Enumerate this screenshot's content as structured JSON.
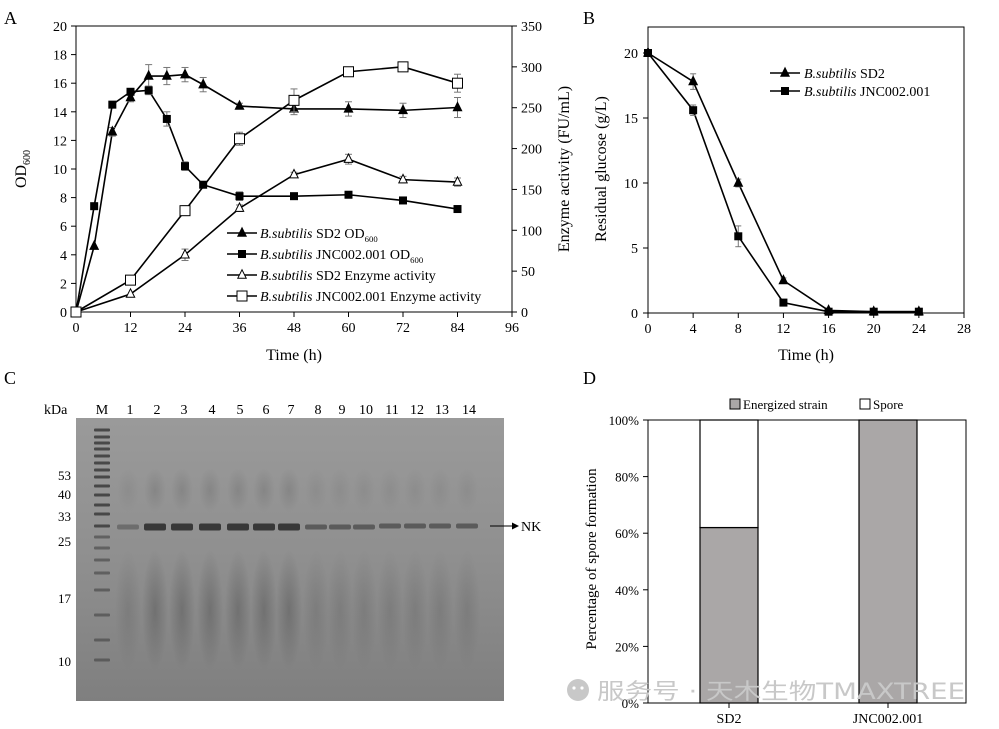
{
  "panels": {
    "A": {
      "label": "A"
    },
    "B": {
      "label": "B"
    },
    "C": {
      "label": "C"
    },
    "D": {
      "label": "D"
    }
  },
  "chart_data": [
    {
      "id": "A",
      "type": "line",
      "title": "",
      "xlabel": "Time (h)",
      "ylabel": "OD",
      "ylabel_sub": "600",
      "y2label": "Enzyme activity (FU/mL)",
      "xlim": [
        0,
        96
      ],
      "ylim": [
        0,
        20
      ],
      "y2lim": [
        0,
        350
      ],
      "xticks": [
        "0",
        "12",
        "24",
        "36",
        "48",
        "60",
        "72",
        "84",
        "96"
      ],
      "yticks": [
        "0",
        "2",
        "4",
        "6",
        "8",
        "10",
        "12",
        "14",
        "16",
        "18",
        "20"
      ],
      "y2ticks": [
        "0",
        "50",
        "100",
        "150",
        "200",
        "250",
        "300",
        "350"
      ],
      "series": [
        {
          "name": "B.subtilis SD2 OD600",
          "legend_italic": "B.subtilis",
          "legend_rest": " SD2 OD",
          "legend_sub": "600",
          "axis": "left",
          "marker": "triangle-filled",
          "x": [
            0,
            4,
            8,
            12,
            16,
            20,
            24,
            28,
            36,
            48,
            60,
            72,
            84
          ],
          "y": [
            0,
            4.6,
            12.6,
            15,
            16.5,
            16.5,
            16.6,
            15.9,
            14.4,
            14.2,
            14.2,
            14.1,
            14.3
          ],
          "err": [
            0,
            0,
            0.3,
            0.3,
            0.8,
            0.6,
            0.5,
            0.5,
            0.2,
            0.4,
            0.5,
            0.5,
            0.7
          ]
        },
        {
          "name": "B.subtilis JNC002.001 OD600",
          "legend_italic": "B.subtilis",
          "legend_rest": " JNC002.001 OD",
          "legend_sub": "600",
          "axis": "left",
          "marker": "square-filled",
          "x": [
            0,
            4,
            8,
            12,
            16,
            20,
            24,
            28,
            36,
            48,
            60,
            72,
            84
          ],
          "y": [
            0,
            7.4,
            14.5,
            15.4,
            15.5,
            13.5,
            10.2,
            8.9,
            8.1,
            8.1,
            8.2,
            7.8,
            7.2
          ],
          "err": [
            0,
            0,
            0,
            0,
            0.3,
            0.5,
            0.3,
            0.2,
            0.3,
            0.2,
            0.2,
            0.2,
            0.2
          ]
        },
        {
          "name": "B.subtilis SD2 Enzyme activity",
          "legend_italic": "B.subtilis",
          "legend_rest": " SD2 Enzyme activity",
          "legend_sub": "",
          "axis": "right",
          "marker": "triangle-open",
          "x": [
            0,
            12,
            24,
            36,
            48,
            60,
            72,
            84
          ],
          "y": [
            0,
            22,
            70,
            127,
            168,
            187,
            162,
            159
          ],
          "err": [
            0,
            0,
            7,
            4,
            3,
            6,
            4,
            5
          ]
        },
        {
          "name": "B.subtilis JNC002.001 Enzyme activity",
          "legend_italic": "B.subtilis",
          "legend_rest": " JNC002.001 Enzyme activity",
          "legend_sub": "",
          "axis": "right",
          "marker": "square-open",
          "x": [
            0,
            12,
            24,
            36,
            48,
            60,
            72,
            84
          ],
          "y": [
            0,
            39,
            124,
            212,
            259,
            294,
            300,
            280
          ],
          "err": [
            0,
            0,
            6,
            8,
            14,
            0,
            0,
            11
          ]
        }
      ]
    },
    {
      "id": "B",
      "type": "line",
      "xlabel": "Time (h)",
      "ylabel": "Residual glucose (g/L)",
      "xlim": [
        0,
        28
      ],
      "ylim": [
        0,
        22
      ],
      "xticks": [
        "0",
        "4",
        "8",
        "12",
        "16",
        "20",
        "24",
        "28"
      ],
      "yticks": [
        "0",
        "5",
        "10",
        "15",
        "20"
      ],
      "series": [
        {
          "name": "B.subtilis SD2",
          "legend_italic": "B.subtilis",
          "legend_rest": " SD2",
          "marker": "triangle-filled",
          "x": [
            0,
            4,
            8,
            12,
            16,
            20,
            24
          ],
          "y": [
            20,
            17.8,
            10,
            2.5,
            0.2,
            0.1,
            0.1
          ],
          "err": [
            0,
            0.6,
            0.3,
            0.2,
            0.1,
            0.1,
            0.1
          ]
        },
        {
          "name": "B.subtilis JNC002.001",
          "legend_italic": "B.subtilis",
          "legend_rest": " JNC002.001",
          "marker": "square-filled",
          "x": [
            0,
            4,
            8,
            12,
            16,
            20,
            24
          ],
          "y": [
            20,
            15.6,
            5.9,
            0.8,
            0.1,
            0.1,
            0.1
          ],
          "err": [
            0,
            0.4,
            0.8,
            0.1,
            0.1,
            0.1,
            0.1
          ]
        }
      ]
    },
    {
      "id": "D",
      "type": "bar",
      "stacked": true,
      "ylabel": "Percentage of spore formation",
      "categories": [
        "SD2",
        "JNC002.001"
      ],
      "yticks": [
        "0%",
        "20%",
        "40%",
        "60%",
        "80%",
        "100%"
      ],
      "series": [
        {
          "name": "Energized strain",
          "color": "#aaa7a7",
          "values": [
            62,
            100
          ]
        },
        {
          "name": "Spore",
          "color": "#ffffff",
          "values": [
            38,
            0
          ]
        }
      ]
    }
  ],
  "gel": {
    "unit_label": "kDa",
    "marker_lane_label": "M",
    "lane_labels": [
      "1",
      "2",
      "3",
      "4",
      "5",
      "6",
      "7",
      "8",
      "9",
      "10",
      "11",
      "12",
      "13",
      "14"
    ],
    "mw_markers": [
      "53",
      "40",
      "33",
      "25",
      "17",
      "10"
    ],
    "band_label": "NK"
  },
  "watermark": {
    "text": "服务号 · 天木生物TMAXTREE"
  },
  "colors": {
    "bar_gray": "#aaa7a7",
    "gel_bg": "#8c8c8c",
    "watermark": "#c8c8c8"
  }
}
